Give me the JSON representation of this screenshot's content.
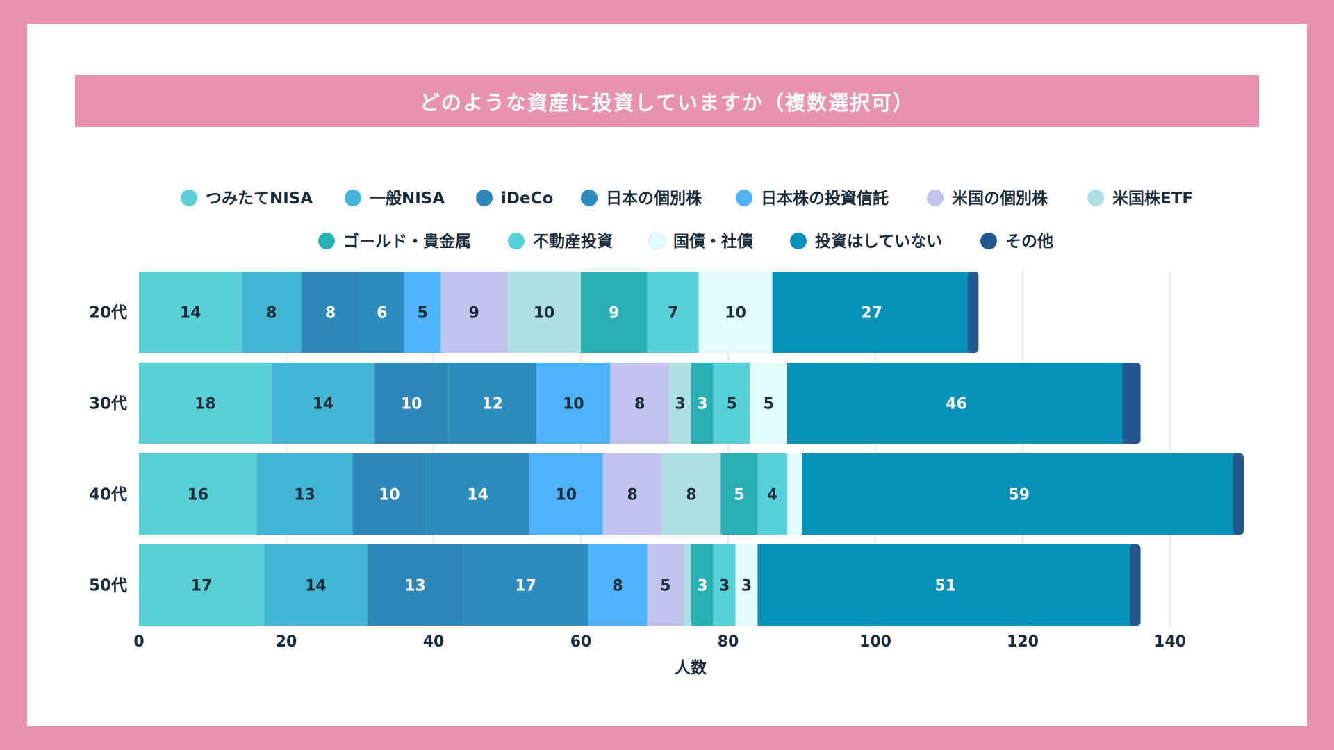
{
  "title": "どのような資産に投資していますか（複数選択可）",
  "chart_data": {
    "type": "bar",
    "orientation": "horizontal",
    "stacked": true,
    "title": "どのような資産に投資していますか（複数選択可）",
    "xlabel": "人数",
    "ylabel": "",
    "xlim": [
      0,
      150
    ],
    "xticks": [
      0,
      20,
      40,
      60,
      80,
      100,
      120,
      140
    ],
    "grid": true,
    "legend_position": "top",
    "categories": [
      "20代",
      "30代",
      "40代",
      "50代"
    ],
    "series": [
      {
        "name": "つみたてNISA",
        "color": "#58d0d5",
        "label_color": "#1b2b3a",
        "values": [
          14,
          18,
          16,
          17
        ]
      },
      {
        "name": "一般NISA",
        "color": "#42b6d4",
        "label_color": "#1b2b3a",
        "values": [
          8,
          14,
          13,
          14
        ]
      },
      {
        "name": "iDeCo",
        "color": "#2d87b9",
        "label_color": "#ffffff",
        "values": [
          8,
          10,
          10,
          13
        ]
      },
      {
        "name": "日本の個別株",
        "color": "#2e8bbd",
        "label_color": "#ffffff",
        "values": [
          6,
          12,
          14,
          17
        ]
      },
      {
        "name": "日本株の投資信託",
        "color": "#4fb3fb",
        "label_color": "#1b2b3a",
        "values": [
          5,
          10,
          10,
          8
        ]
      },
      {
        "name": "米国の個別株",
        "color": "#c3c3ef",
        "label_color": "#1b2b3a",
        "values": [
          9,
          8,
          8,
          5
        ]
      },
      {
        "name": "米国株ETF",
        "color": "#addfe3",
        "label_color": "#1b2b3a",
        "values": [
          10,
          3,
          8,
          1
        ]
      },
      {
        "name": "ゴールド・貴金属",
        "color": "#2aafb5",
        "label_color": "#ffffff",
        "values": [
          9,
          3,
          5,
          3
        ]
      },
      {
        "name": "不動産投資",
        "color": "#56d1d8",
        "label_color": "#1b2b3a",
        "values": [
          7,
          5,
          4,
          3
        ]
      },
      {
        "name": "国債・社債",
        "color": "#e2fcfb",
        "label_color": "#1b2b3a",
        "values": [
          10,
          5,
          2,
          3
        ]
      },
      {
        "name": "投資はしていない",
        "color": "#0591b8",
        "label_color": "#ffffff",
        "values": [
          27,
          46,
          59,
          51
        ]
      },
      {
        "name": "その他",
        "color": "#24578f",
        "label_color": "#ffffff",
        "values": [
          1,
          2,
          1,
          1
        ]
      }
    ],
    "data_labels": [
      [
        "14",
        "8",
        "8",
        "6",
        "5",
        "9",
        "10",
        "9",
        "7",
        "10",
        "27",
        ""
      ],
      [
        "18",
        "14",
        "10",
        "12",
        "10",
        "8",
        "3",
        "3",
        "5",
        "5",
        "46",
        ""
      ],
      [
        "16",
        "13",
        "10",
        "14",
        "10",
        "8",
        "8",
        "5",
        "4",
        "",
        "59",
        ""
      ],
      [
        "17",
        "14",
        "13",
        "17",
        "8",
        "5",
        "",
        "3",
        "3",
        "3",
        "51",
        ""
      ]
    ]
  }
}
